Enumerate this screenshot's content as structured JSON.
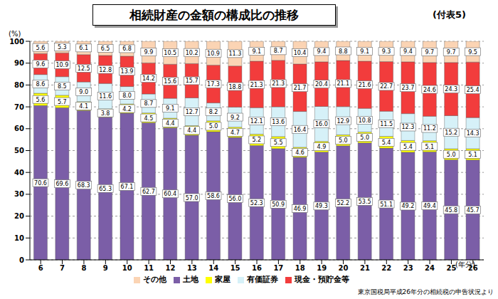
{
  "chart_data": {
    "type": "bar",
    "title": "相続財産の金額の構成比の推移",
    "subtitle": "(付表5)",
    "x_label": "(年分)",
    "y_label": "(%)",
    "annotations": [
      "東京国税局平成26年分の相続税の申告状況より"
    ],
    "categories": [
      "6",
      "7",
      "8",
      "9",
      "10",
      "11",
      "12",
      "13",
      "14",
      "15",
      "16",
      "17",
      "18",
      "19",
      "20",
      "21",
      "22",
      "23",
      "24",
      "25",
      "26"
    ],
    "stacked": true,
    "data_labels": true,
    "grid": true,
    "legend": "bottom",
    "ylim": [
      0,
      100
    ],
    "yticks": [
      0,
      10,
      20,
      30,
      40,
      50,
      60,
      70,
      80,
      90,
      100
    ],
    "series": [
      {
        "name": "土地",
        "color": "#7b5ea7",
        "values": [
          70.6,
          69.6,
          68.3,
          65.3,
          67.1,
          62.7,
          60.4,
          57.0,
          58.6,
          56.0,
          52.3,
          50.9,
          46.9,
          49.3,
          52.2,
          53.5,
          51.1,
          49.2,
          49.4,
          45.8,
          45.7
        ],
        "value_labels": [
          "70.6",
          "69.6",
          "68.3",
          "65.3",
          "67.1",
          "62.7",
          "60.4",
          "57.0",
          "58.6",
          "56.0",
          "52.3",
          "50.9",
          "46.9",
          "49.3",
          "52.2",
          "53.5",
          "51.1",
          "49.2",
          "49.4",
          "45.8",
          "45.7"
        ]
      },
      {
        "name": "家屋",
        "color": "#ffff00",
        "values": [
          5.6,
          5.7,
          4.1,
          3.8,
          4.2,
          4.5,
          4.4,
          4.4,
          5.0,
          4.7,
          5.2,
          5.5,
          4.6,
          4.9,
          5.0,
          5.0,
          5.4,
          5.4,
          5.1,
          5.0,
          5.1
        ],
        "value_labels": [
          "5.6",
          "5.7",
          "4.1",
          "3.8",
          "4.2",
          "4.5",
          "4.4",
          "4.4",
          "5.0",
          "4.7",
          "5.2",
          "5.5",
          "4.6",
          "4.9",
          "5.0",
          "5.0",
          "5.4",
          "5.4",
          "5.1",
          "5.0",
          "5.1"
        ]
      },
      {
        "name": "有価証券",
        "color": "#d6f1f8",
        "values": [
          8.6,
          8.5,
          9.0,
          11.6,
          8.0,
          8.7,
          9.1,
          12.7,
          8.2,
          9.2,
          12.1,
          13.6,
          16.4,
          16.0,
          12.9,
          10.8,
          11.5,
          12.3,
          11.2,
          15.2,
          14.3
        ],
        "value_labels": [
          "8.6",
          "8.5",
          "9.0",
          "11.6",
          "8.0",
          "8.7",
          "9.1",
          "12.7",
          "8.2",
          "9.2",
          "12.1",
          "13.6",
          "16.4",
          "16.0",
          "12.9",
          "10.8",
          "11.5",
          "12.3",
          "11.2",
          "15.2",
          "14.3"
        ]
      },
      {
        "name": "現金・預貯金等",
        "color": "#f23c3c",
        "values": [
          9.6,
          10.9,
          12.5,
          12.8,
          13.9,
          14.2,
          15.6,
          15.7,
          17.3,
          18.8,
          21.3,
          21.3,
          21.7,
          20.4,
          21.1,
          21.6,
          22.7,
          23.7,
          24.6,
          24.3,
          25.4
        ],
        "value_labels": [
          "9.6",
          "10.9",
          "12.5",
          "12.8",
          "13.9",
          "14.2",
          "15.6",
          "15.7",
          "17.3",
          "18.8",
          "21.3",
          "21.3",
          "21.7",
          "20.4",
          "21.1",
          "21.6",
          "22.7",
          "23.7",
          "24.6",
          "24.3",
          "25.4"
        ]
      },
      {
        "name": "その他",
        "color": "#fbd4b4",
        "values": [
          5.6,
          5.3,
          6.1,
          6.5,
          6.8,
          9.9,
          10.5,
          10.2,
          10.9,
          11.3,
          9.1,
          8.7,
          10.4,
          9.4,
          8.8,
          9.1,
          9.3,
          9.4,
          9.7,
          9.7,
          9.5
        ],
        "value_labels": [
          "5.6",
          "5.3",
          "6.1",
          "6.5",
          "6.8",
          "9.9",
          "10.5",
          "10.2",
          "10.9",
          "11.3",
          "9.1",
          "8.7",
          "10.4",
          "9.4",
          "8.8",
          "9.1",
          "9.3",
          "9.4",
          "9.7",
          "9.7",
          "9.5"
        ]
      }
    ]
  }
}
